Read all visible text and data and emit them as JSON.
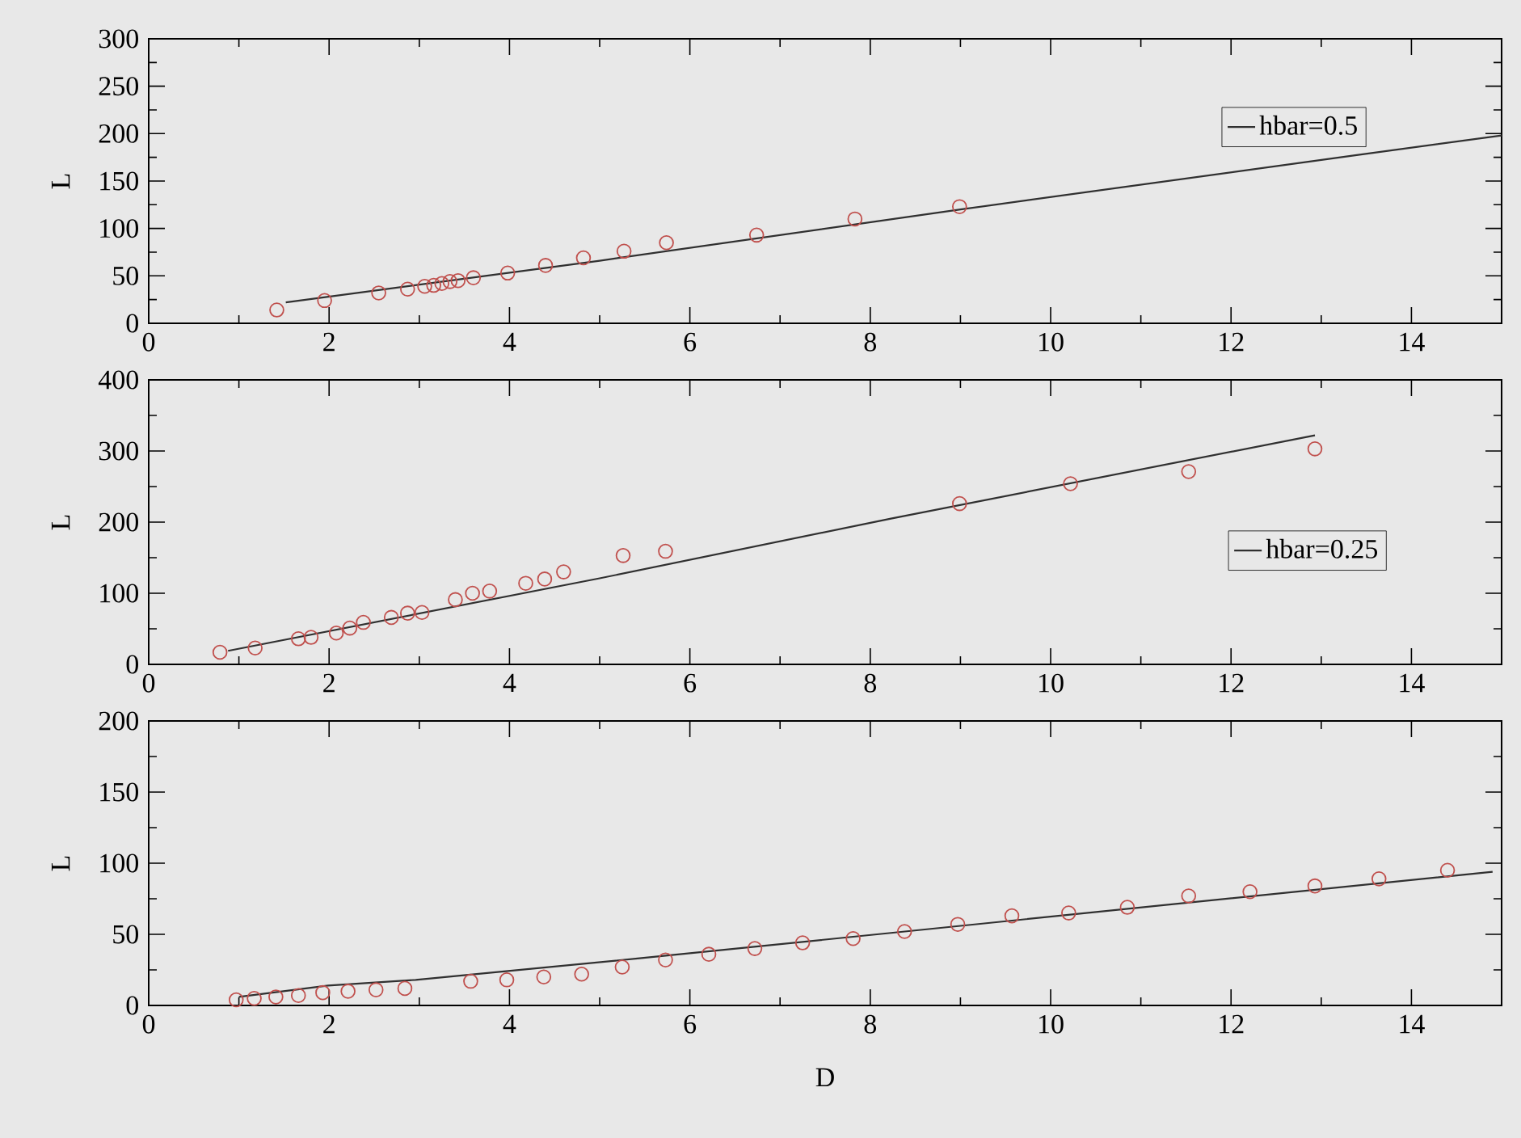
{
  "chart_data": [
    {
      "type": "scatter",
      "ylabel": "L",
      "xlim": [
        0,
        15
      ],
      "ylim": [
        0,
        300
      ],
      "xticks": [
        0,
        {
          "value": 1,
          "label": null
        },
        2,
        {
          "value": 3,
          "label": null
        },
        4,
        {
          "value": 5,
          "label": null
        },
        6,
        {
          "value": 7,
          "label": null
        },
        8,
        {
          "value": 9,
          "label": null
        },
        10,
        {
          "value": 11,
          "label": null
        },
        12,
        {
          "value": 13,
          "label": null
        },
        14
      ],
      "yticks": [
        0,
        {
          "value": 25,
          "label": null
        },
        50,
        {
          "value": 75,
          "label": null
        },
        100,
        {
          "value": 125,
          "label": null
        },
        150,
        {
          "value": 175,
          "label": null
        },
        200,
        {
          "value": 225,
          "label": null
        },
        250,
        {
          "value": 275,
          "label": null
        },
        300
      ],
      "legend": "top right",
      "series": [
        {
          "marker": "circle",
          "color": "#c0504d",
          "x": [
            1.42,
            1.95,
            2.55,
            2.87,
            3.06,
            3.16,
            3.25,
            3.34,
            3.43,
            3.6,
            3.98,
            4.4,
            4.82,
            5.27,
            5.74,
            6.74,
            7.83,
            8.99
          ],
          "values": [
            14,
            24,
            32,
            36,
            39,
            40,
            42,
            44,
            45,
            48,
            53,
            61,
            69,
            76,
            85,
            93,
            110,
            123
          ]
        },
        {
          "type": "line",
          "name": "hbar=0.5",
          "color": "#303030",
          "x": [
            1.52,
            5,
            9,
            13.36,
            15
          ],
          "values": [
            22,
            66,
            120,
            177,
            198
          ]
        }
      ]
    },
    {
      "type": "scatter",
      "ylabel": "L",
      "xlim": [
        0,
        15
      ],
      "ylim": [
        0,
        400
      ],
      "xticks": [
        0,
        {
          "value": 1,
          "label": null
        },
        2,
        {
          "value": 3,
          "label": null
        },
        4,
        {
          "value": 5,
          "label": null
        },
        6,
        {
          "value": 7,
          "label": null
        },
        8,
        {
          "value": 9,
          "label": null
        },
        10,
        {
          "value": 11,
          "label": null
        },
        12,
        {
          "value": 13,
          "label": null
        },
        14
      ],
      "yticks": [
        0,
        {
          "value": 50,
          "label": null
        },
        100,
        {
          "value": 150,
          "label": null
        },
        200,
        {
          "value": 250,
          "label": null
        },
        300,
        {
          "value": 350,
          "label": null
        },
        400
      ],
      "legend": "right",
      "series": [
        {
          "marker": "circle",
          "color": "#c0504d",
          "x": [
            0.79,
            1.18,
            1.66,
            1.8,
            2.08,
            2.23,
            2.38,
            2.69,
            2.87,
            3.03,
            3.4,
            3.59,
            3.78,
            4.18,
            4.39,
            4.6,
            5.26,
            5.73,
            8.99,
            10.22,
            11.53,
            12.93
          ],
          "values": [
            17,
            23,
            36,
            38,
            44,
            51,
            59,
            66,
            72,
            73,
            91,
            100,
            103,
            114,
            120,
            130,
            153,
            159,
            226,
            254,
            271,
            303
          ]
        },
        {
          "type": "line",
          "name": "hbar=0.25",
          "color": "#303030",
          "x": [
            0.88,
            5,
            8.23,
            12.93
          ],
          "values": [
            19,
            121,
            205,
            322
          ]
        }
      ]
    },
    {
      "type": "scatter",
      "xlabel": "D",
      "ylabel": "L",
      "xlim": [
        0,
        15
      ],
      "ylim": [
        0,
        200
      ],
      "xticks": [
        0,
        {
          "value": 1,
          "label": null
        },
        2,
        {
          "value": 3,
          "label": null
        },
        4,
        {
          "value": 5,
          "label": null
        },
        6,
        {
          "value": 7,
          "label": null
        },
        8,
        {
          "value": 9,
          "label": null
        },
        10,
        {
          "value": 11,
          "label": null
        },
        12,
        {
          "value": 13,
          "label": null
        },
        14
      ],
      "yticks": [
        0,
        {
          "value": 25,
          "label": null
        },
        50,
        {
          "value": 75,
          "label": null
        },
        100,
        {
          "value": 125,
          "label": null
        },
        150,
        {
          "value": 175,
          "label": null
        },
        200
      ],
      "series": [
        {
          "marker": "circle",
          "color": "#c0504d",
          "x": [
            0.97,
            1.17,
            1.41,
            1.66,
            1.93,
            2.21,
            2.52,
            2.84,
            3.57,
            3.97,
            4.38,
            4.8,
            5.25,
            5.73,
            6.21,
            6.72,
            7.25,
            7.81,
            8.38,
            8.97,
            9.57,
            10.2,
            10.85,
            11.53,
            12.21,
            12.93,
            13.64,
            14.4
          ],
          "values": [
            4,
            5,
            6,
            7,
            9,
            10,
            11,
            12,
            17,
            18,
            20,
            22,
            27,
            32,
            36,
            40,
            44,
            47,
            52,
            57,
            63,
            65,
            69,
            77,
            80,
            84,
            89,
            95
          ]
        },
        {
          "type": "line",
          "color": "#303030",
          "x": [
            1.0,
            1.99,
            2.96,
            5.42,
            8.23,
            14.9
          ],
          "values": [
            6,
            14,
            18,
            33,
            51,
            94
          ]
        }
      ]
    }
  ]
}
